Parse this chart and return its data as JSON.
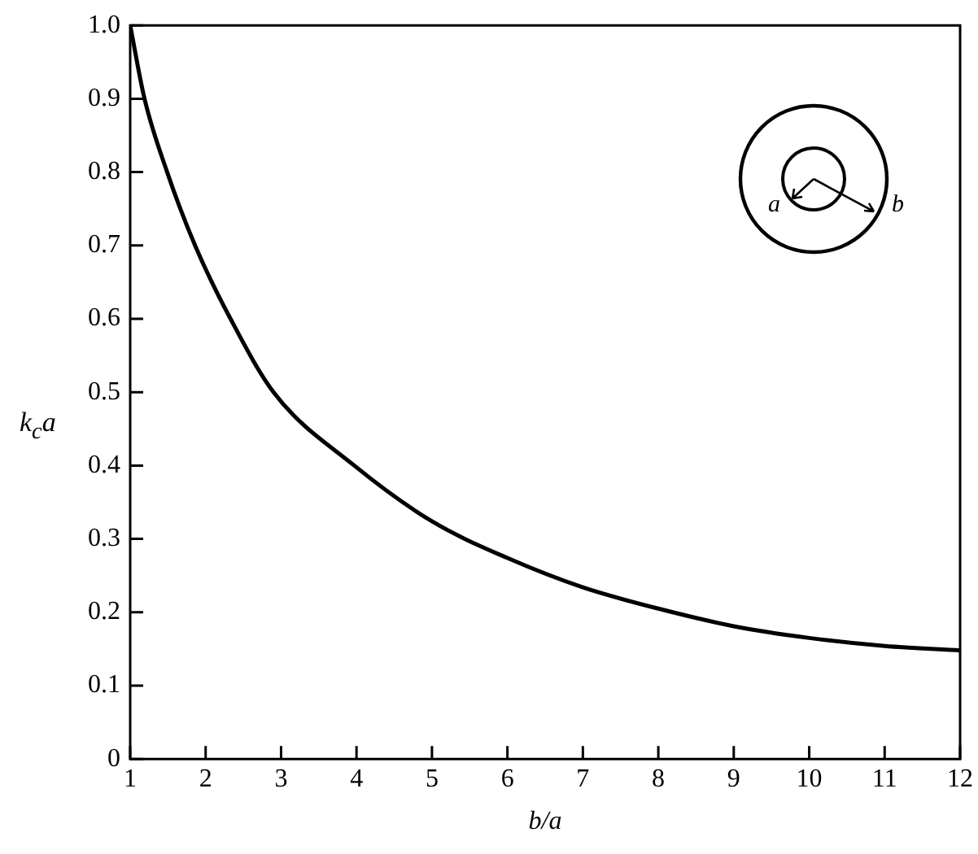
{
  "chart_data": {
    "type": "line",
    "xlabel": "b/a",
    "ylabel": "k$_{c}$a",
    "x": [
      1,
      1.19,
      1.49,
      1.86,
      2.33,
      2.9,
      3.97,
      5,
      6,
      7,
      8,
      9,
      10,
      11,
      12
    ],
    "series": [
      {
        "color": "#000000",
        "values": [
          1.0,
          0.9,
          0.8,
          0.7,
          0.6,
          0.5,
          0.4,
          0.324,
          0.274,
          0.234,
          0.205,
          0.181,
          0.165,
          0.154,
          0.148
        ]
      }
    ],
    "xlim": [
      1,
      12
    ],
    "xticks": [
      1,
      2,
      3,
      4,
      5,
      6,
      7,
      8,
      9,
      10,
      11,
      12
    ],
    "ylim": [
      0,
      1
    ],
    "yticks": [
      {
        "value": 0,
        "label": "0"
      },
      0.1,
      0.2,
      0.3,
      0.4,
      0.5,
      0.6,
      0.7,
      0.8,
      0.9,
      {
        "value": 1,
        "label": "1.0"
      }
    ],
    "grid": false,
    "legend": false,
    "marker": "none",
    "line_style": "solid",
    "annotations": [
      "a",
      "b"
    ]
  }
}
